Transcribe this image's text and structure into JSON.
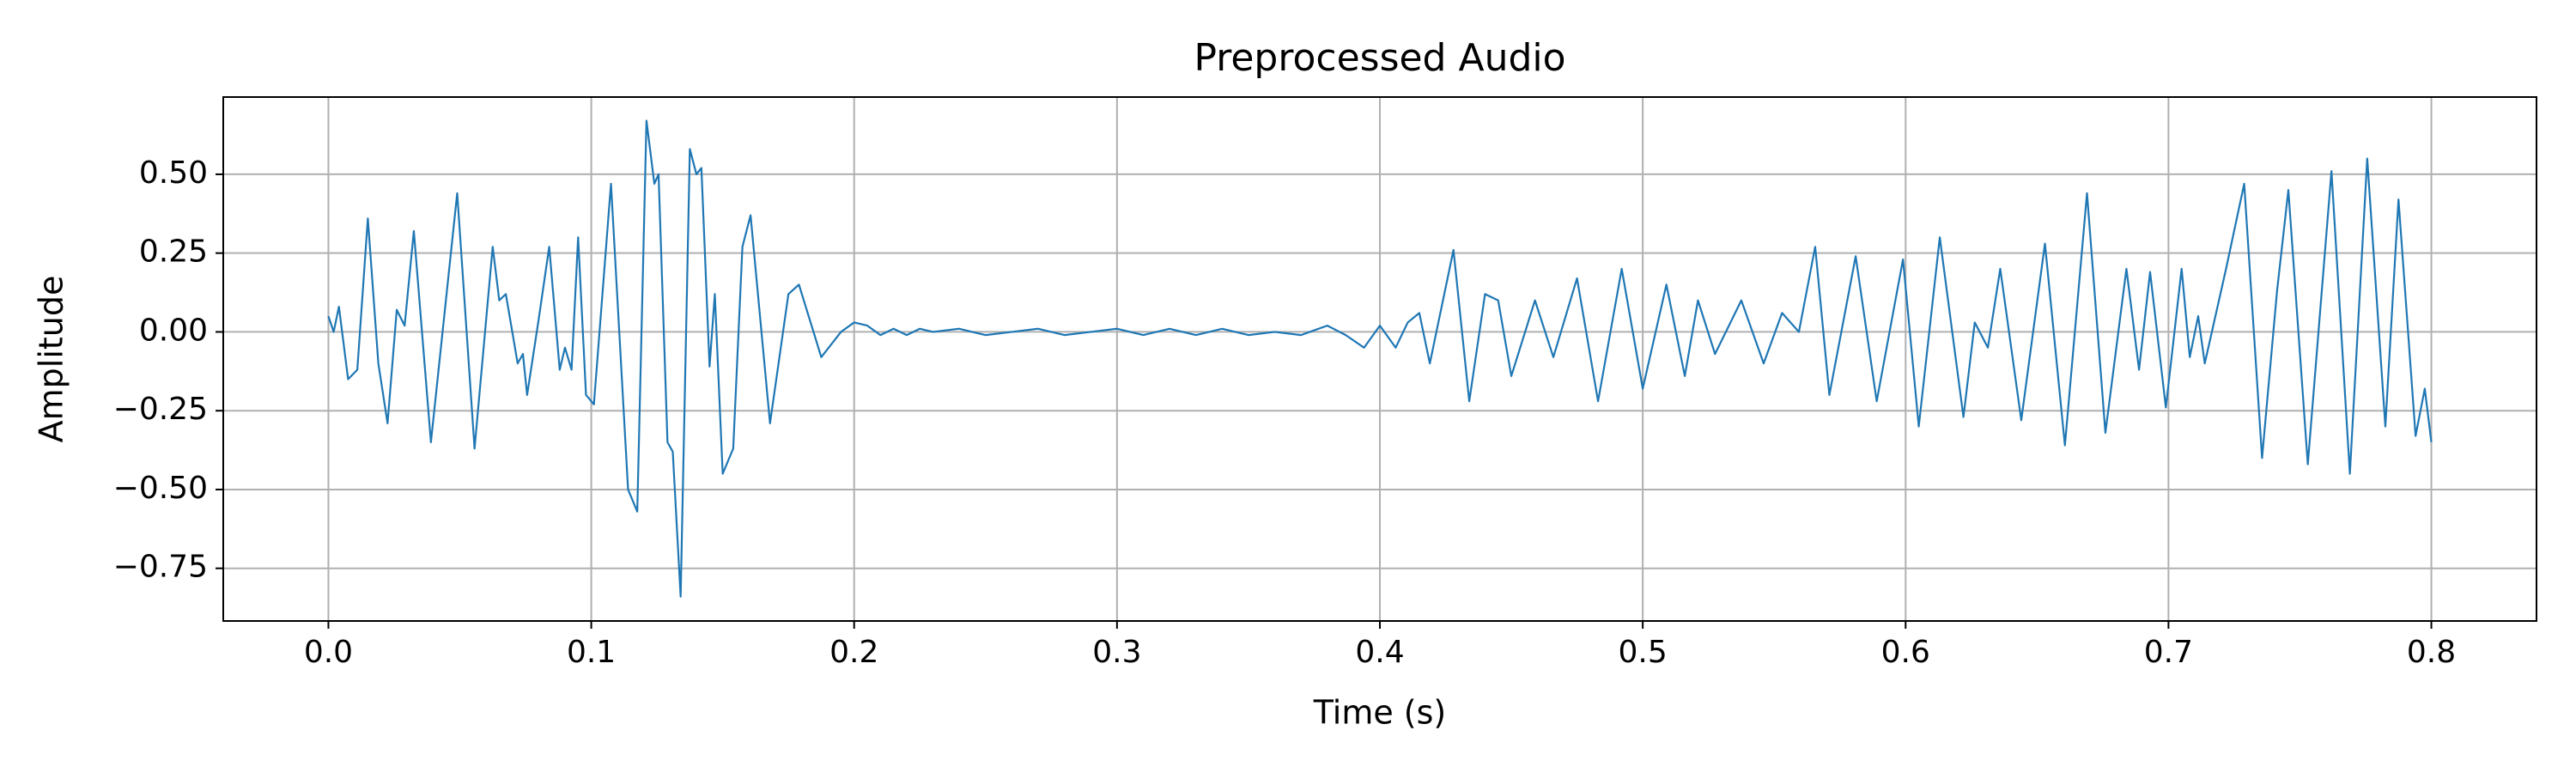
{
  "chart_data": {
    "type": "line",
    "title": "Preprocessed Audio",
    "xlabel": "Time (s)",
    "ylabel": "Amplitude",
    "color": "#1f77b4",
    "grid": true,
    "xlim": [
      -0.04,
      0.84
    ],
    "ylim": [
      -0.917,
      0.745
    ],
    "xticks": [
      {
        "value": 0,
        "label": "0.0"
      },
      0.1,
      0.2,
      0.3,
      0.4,
      0.5,
      0.6,
      0.7,
      0.8
    ],
    "yticks": [
      {
        "value": -0.75,
        "label": "−0.75"
      },
      {
        "value": -0.5,
        "label": "−0.50"
      },
      {
        "value": -0.25,
        "label": "−0.25"
      },
      {
        "value": 0,
        "label": "0.00"
      },
      {
        "value": 0.25,
        "label": "0.25"
      },
      {
        "value": 0.5,
        "label": "0.50"
      }
    ],
    "x": [
      0.0,
      0.002,
      0.004,
      0.0075,
      0.011,
      0.015,
      0.019,
      0.0225,
      0.026,
      0.029,
      0.0325,
      0.039,
      0.049,
      0.0556,
      0.0625,
      0.065,
      0.0675,
      0.072,
      0.074,
      0.0756,
      0.08,
      0.084,
      0.088,
      0.09,
      0.0925,
      0.095,
      0.098,
      0.101,
      0.1075,
      0.114,
      0.1175,
      0.121,
      0.124,
      0.1256,
      0.129,
      0.131,
      0.134,
      0.1375,
      0.14,
      0.1419,
      0.145,
      0.147,
      0.15,
      0.154,
      0.1575,
      0.1606,
      0.168,
      0.175,
      0.179,
      0.1875,
      0.195,
      0.2,
      0.205,
      0.21,
      0.215,
      0.22,
      0.225,
      0.23,
      0.24,
      0.25,
      0.26,
      0.27,
      0.28,
      0.29,
      0.3,
      0.31,
      0.32,
      0.33,
      0.34,
      0.35,
      0.36,
      0.37,
      0.38,
      0.387,
      0.394,
      0.4,
      0.406,
      0.4106,
      0.415,
      0.419,
      0.428,
      0.434,
      0.44,
      0.445,
      0.45,
      0.459,
      0.466,
      0.475,
      0.483,
      0.492,
      0.5,
      0.509,
      0.516,
      0.521,
      0.5275,
      0.5375,
      0.546,
      0.553,
      0.5594,
      0.5656,
      0.571,
      0.581,
      0.589,
      0.599,
      0.605,
      0.613,
      0.622,
      0.6263,
      0.6313,
      0.636,
      0.644,
      0.653,
      0.6606,
      0.669,
      0.676,
      0.684,
      0.6888,
      0.693,
      0.699,
      0.705,
      0.7081,
      0.7113,
      0.7138,
      0.7219,
      0.7288,
      0.7356,
      0.7413,
      0.7456,
      0.753,
      0.762,
      0.769,
      0.7756,
      0.7825,
      0.7875,
      0.794,
      0.7975,
      0.8
    ],
    "values": [
      0.05,
      0.0,
      0.08,
      -0.15,
      -0.12,
      0.36,
      -0.1,
      -0.29,
      0.07,
      0.02,
      0.32,
      -0.35,
      0.44,
      -0.37,
      0.27,
      0.1,
      0.12,
      -0.1,
      -0.07,
      -0.2,
      0.04,
      0.27,
      -0.12,
      -0.05,
      -0.12,
      0.3,
      -0.2,
      -0.23,
      0.47,
      -0.5,
      -0.57,
      0.67,
      0.47,
      0.5,
      -0.35,
      -0.38,
      -0.84,
      0.58,
      0.5,
      0.52,
      -0.11,
      0.12,
      -0.45,
      -0.37,
      0.27,
      0.37,
      -0.29,
      0.12,
      0.15,
      -0.08,
      0.0,
      0.03,
      0.02,
      -0.01,
      0.01,
      -0.01,
      0.01,
      0.0,
      0.01,
      -0.01,
      0.0,
      0.01,
      -0.01,
      0.0,
      0.01,
      -0.01,
      0.01,
      -0.01,
      0.01,
      -0.01,
      0.0,
      -0.01,
      0.02,
      -0.01,
      -0.05,
      0.02,
      -0.05,
      0.03,
      0.06,
      -0.1,
      0.26,
      -0.22,
      0.12,
      0.1,
      -0.14,
      0.1,
      -0.08,
      0.17,
      -0.22,
      0.2,
      -0.18,
      0.15,
      -0.14,
      0.1,
      -0.07,
      0.1,
      -0.1,
      0.06,
      0.0,
      0.27,
      -0.2,
      0.24,
      -0.22,
      0.23,
      -0.3,
      0.3,
      -0.27,
      0.03,
      -0.05,
      0.2,
      -0.28,
      0.28,
      -0.36,
      0.44,
      -0.32,
      0.2,
      -0.12,
      0.19,
      -0.24,
      0.2,
      -0.08,
      0.05,
      -0.1,
      0.2,
      0.47,
      -0.4,
      0.13,
      0.45,
      -0.42,
      0.51,
      -0.45,
      0.55,
      -0.3,
      0.42,
      -0.33,
      -0.18,
      -0.35
    ]
  }
}
